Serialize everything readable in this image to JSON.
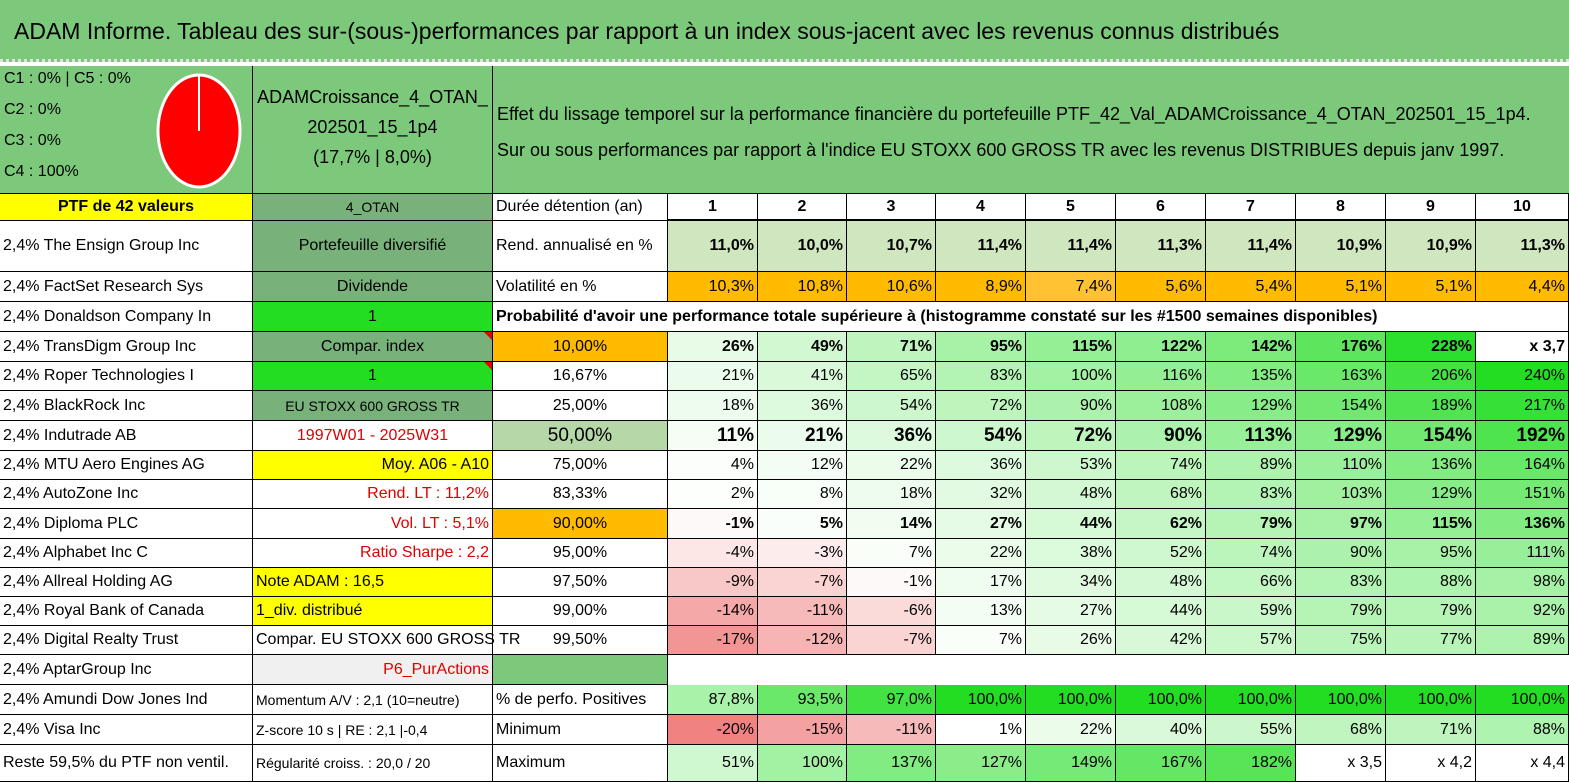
{
  "title": "ADAM Informe. Tableau des sur-(sous-)performances par rapport à un index sous-jacent avec les revenus connus distribués",
  "legend": [
    "C1 : 0% | C5 : 0%",
    "C2 : 0%",
    "C3 : 0%",
    "C4 : 100%"
  ],
  "portfolio": {
    "name_line1": "ADAMCroissance_4_OTAN_",
    "name_line2": "202501_15_1p4",
    "name_line3": "(17,7% | 8,0%)"
  },
  "description": {
    "line1": "Effet du lissage temporel sur la performance financière du portefeuille PTF_42_Val_ADAMCroissance_4_OTAN_202501_15_1p4.",
    "line2": "Sur ou sous performances par rapport à l'indice EU STOXX 600 GROSS TR avec les revenus DISTRIBUES depuis janv 1997."
  },
  "holdings_header": "PTF de 42 valeurs",
  "holdings": [
    "2,4% The Ensign Group Inc",
    "2,4% FactSet Research Sys",
    "2,4% Donaldson Company In",
    "2,4% TransDigm Group Inc",
    "2,4% Roper Technologies I",
    "2,4% BlackRock Inc",
    "2,4% Indutrade AB",
    "2,4% MTU Aero Engines AG",
    "2,4% AutoZone Inc",
    "2,4% Diploma PLC",
    "2,4% Alphabet Inc C",
    "2,4% Allreal Holding AG",
    "2,4% Royal Bank of Canada",
    "2,4% Digital Realty Trust",
    "2,4% AptarGroup Inc",
    "2,4% Amundi Dow Jones Ind",
    "2,4% Visa Inc",
    "Reste 59,5% du PTF non ventil."
  ],
  "info": [
    "4_OTAN",
    "Portefeuille diversifié",
    "Dividende",
    "1",
    "Compar. index",
    "1",
    "EU STOXX 600 GROSS TR",
    "1997W01 - 2025W31",
    "Moy. A06 - A10",
    "Rend. LT : 11,2%",
    "Vol. LT : 5,1%",
    "Ratio Sharpe : 2,2",
    "Note ADAM : 16,5",
    "1_div. distribué",
    "Compar. EU STOXX 600 GROSS TR",
    "P6_PurActions",
    "Momentum A/V : 2,1 (10=neutre)",
    "Z-score 10 s | RE : 2,1 |-0,4",
    "Régularité croiss. : 20,0 / 20"
  ],
  "table": {
    "duration_label": "Durée détention (an)",
    "years": [
      "1",
      "2",
      "3",
      "4",
      "5",
      "6",
      "7",
      "8",
      "9",
      "10"
    ],
    "rend_label": "Rend. annualisé en %",
    "rend": [
      "11,0%",
      "10,0%",
      "10,7%",
      "11,4%",
      "11,4%",
      "11,3%",
      "11,4%",
      "10,9%",
      "10,9%",
      "11,3%"
    ],
    "vol_label": "Volatilité en %",
    "vol": [
      "10,3%",
      "10,8%",
      "10,6%",
      "8,9%",
      "7,4%",
      "5,6%",
      "5,4%",
      "5,1%",
      "5,1%",
      "4,4%"
    ],
    "prob_title": "Probabilité d'avoir une performance totale supérieure à (histogramme constaté sur les #1500 semaines disponibles)",
    "prob_rows": [
      {
        "label": "10,00%",
        "values": [
          "26%",
          "49%",
          "71%",
          "95%",
          "115%",
          "122%",
          "142%",
          "176%",
          "228%",
          "x 3,7"
        ]
      },
      {
        "label": "16,67%",
        "values": [
          "21%",
          "41%",
          "65%",
          "83%",
          "100%",
          "116%",
          "135%",
          "163%",
          "206%",
          "240%"
        ]
      },
      {
        "label": "25,00%",
        "values": [
          "18%",
          "36%",
          "54%",
          "72%",
          "90%",
          "108%",
          "129%",
          "154%",
          "189%",
          "217%"
        ]
      },
      {
        "label": "50,00%",
        "values": [
          "11%",
          "21%",
          "36%",
          "54%",
          "72%",
          "90%",
          "113%",
          "129%",
          "154%",
          "192%"
        ]
      },
      {
        "label": "75,00%",
        "values": [
          "4%",
          "12%",
          "22%",
          "36%",
          "53%",
          "74%",
          "89%",
          "110%",
          "136%",
          "164%"
        ]
      },
      {
        "label": "83,33%",
        "values": [
          "2%",
          "8%",
          "18%",
          "32%",
          "48%",
          "68%",
          "83%",
          "103%",
          "129%",
          "151%"
        ]
      },
      {
        "label": "90,00%",
        "values": [
          "-1%",
          "5%",
          "14%",
          "27%",
          "44%",
          "62%",
          "79%",
          "97%",
          "115%",
          "136%"
        ]
      },
      {
        "label": "95,00%",
        "values": [
          "-4%",
          "-3%",
          "7%",
          "22%",
          "38%",
          "52%",
          "74%",
          "90%",
          "95%",
          "111%"
        ]
      },
      {
        "label": "97,50%",
        "values": [
          "-9%",
          "-7%",
          "-1%",
          "17%",
          "34%",
          "48%",
          "66%",
          "83%",
          "88%",
          "98%"
        ]
      },
      {
        "label": "99,00%",
        "values": [
          "-14%",
          "-11%",
          "-6%",
          "13%",
          "27%",
          "44%",
          "59%",
          "79%",
          "79%",
          "92%"
        ]
      },
      {
        "label": "99,50%",
        "values": [
          "-17%",
          "-12%",
          "-7%",
          "7%",
          "26%",
          "42%",
          "57%",
          "75%",
          "77%",
          "89%"
        ]
      }
    ],
    "pos_label": "% de perfo. Positives",
    "pos": [
      "87,8%",
      "93,5%",
      "97,0%",
      "100,0%",
      "100,0%",
      "100,0%",
      "100,0%",
      "100,0%",
      "100,0%",
      "100,0%"
    ],
    "min_label": "Minimum",
    "min": [
      "-20%",
      "-15%",
      "-11%",
      "1%",
      "22%",
      "40%",
      "55%",
      "68%",
      "71%",
      "88%"
    ],
    "max_label": "Maximum",
    "max": [
      "51%",
      "100%",
      "137%",
      "127%",
      "149%",
      "167%",
      "182%",
      "x 3,5",
      "x 4,2",
      "x 4,4"
    ]
  },
  "colors": {
    "header_green": "#7dc97b",
    "yellow": "#ffff00",
    "lime": "#22dd22",
    "orange": "#ffbb00",
    "red_text": "#e00000",
    "pie_red": "#ff0000"
  }
}
